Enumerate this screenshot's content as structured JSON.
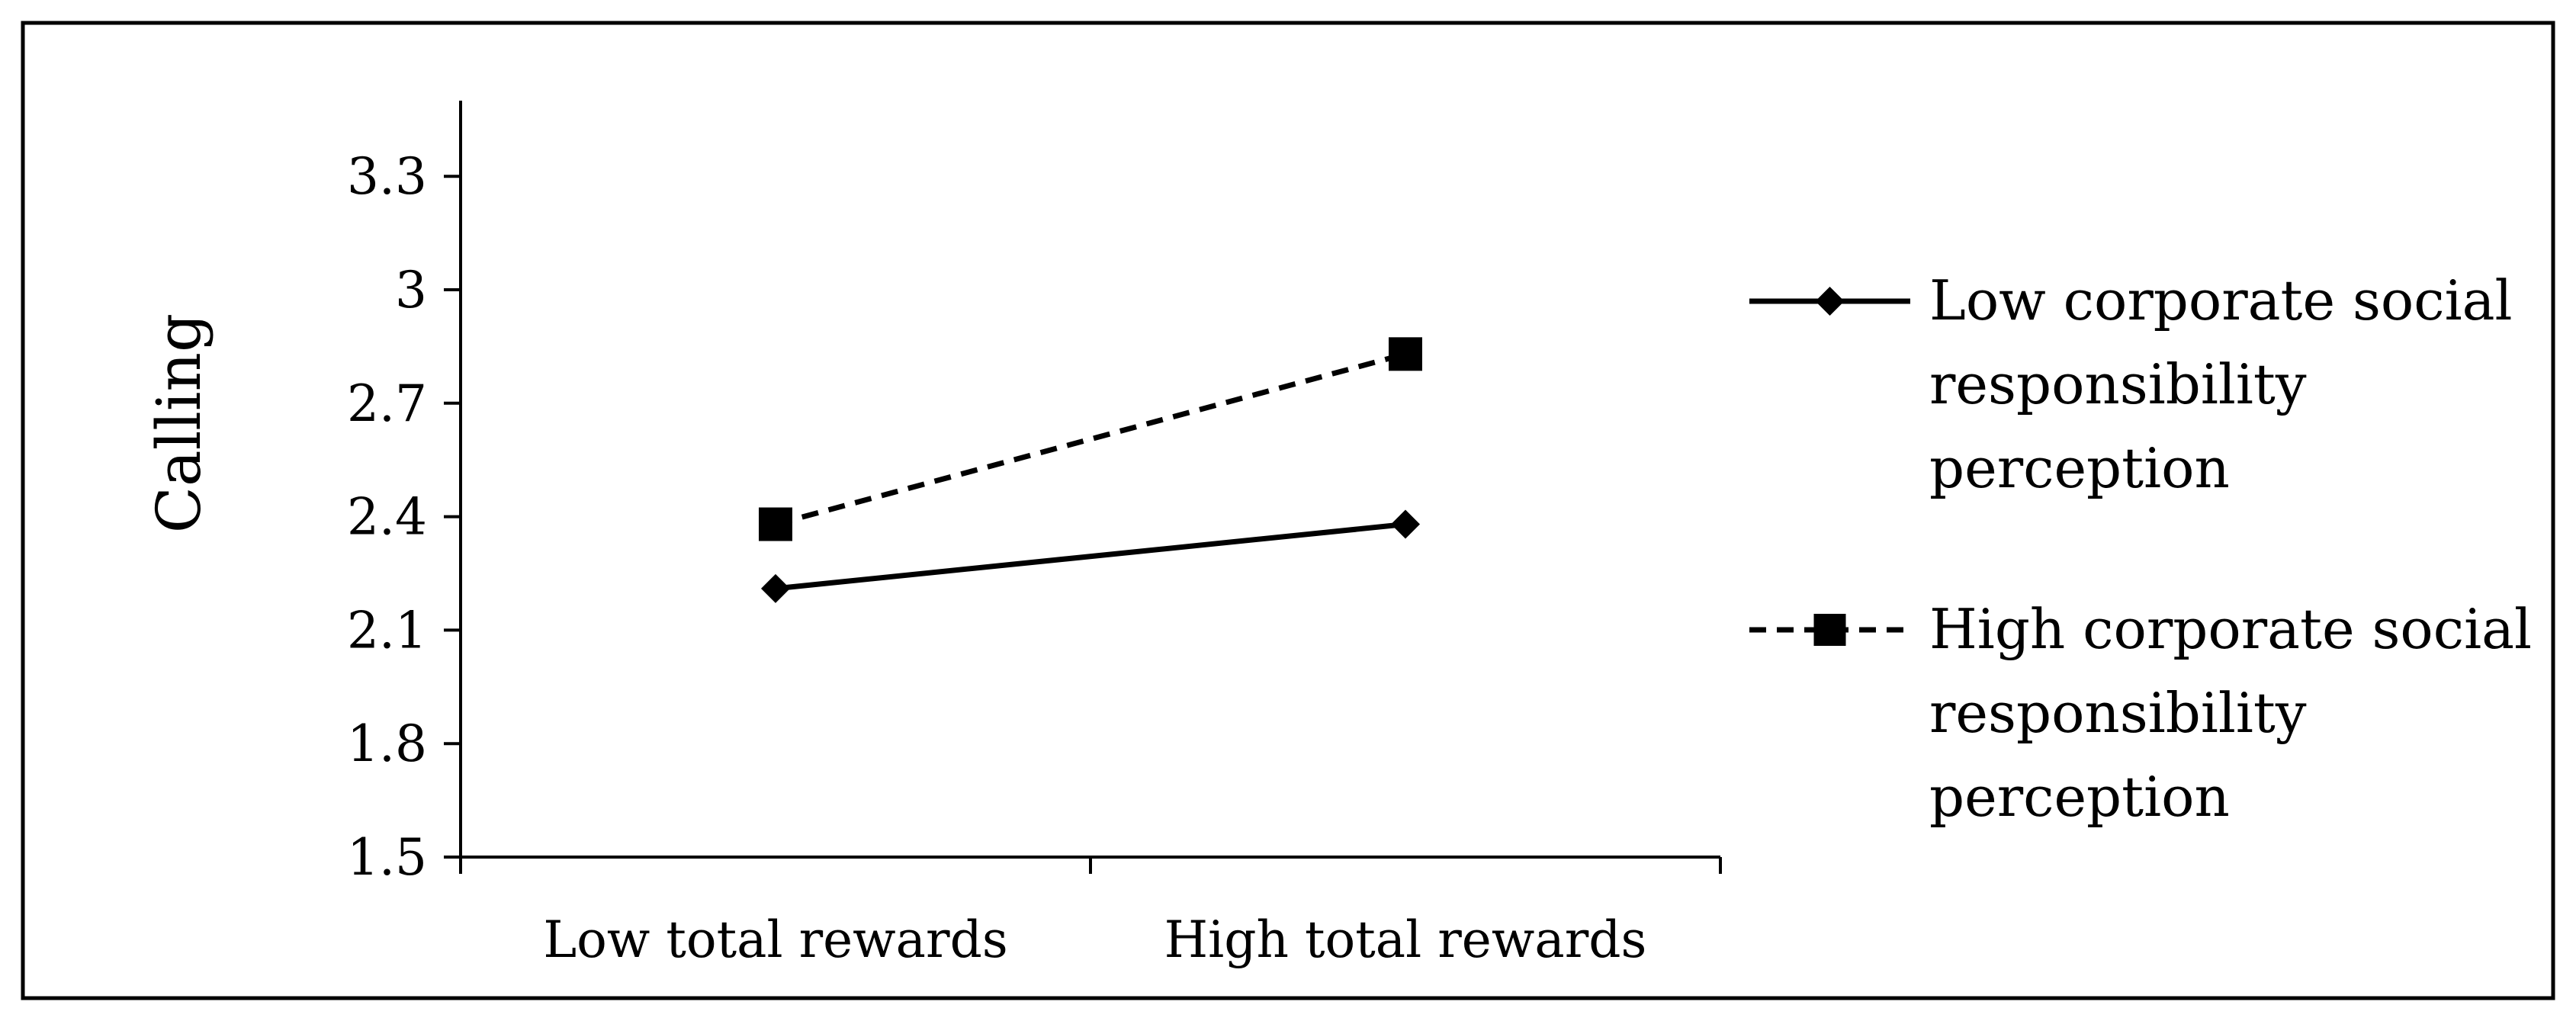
{
  "chart_data": {
    "type": "line",
    "title": "",
    "xlabel": "",
    "ylabel": "Calling",
    "categories": [
      "Low total rewards",
      "High total rewards"
    ],
    "ylim": [
      1.5,
      3.5
    ],
    "yticks": [
      "1.5",
      "1.8",
      "2.1",
      "2.4",
      "2.7",
      "3",
      "3.3"
    ],
    "grid": false,
    "legend_position": "right",
    "series": [
      {
        "name": "Low corporate social responsibility perception",
        "name_lines": [
          "Low corporate social",
          "responsibility",
          "perception"
        ],
        "values": [
          2.21,
          2.38
        ],
        "line_style": "solid",
        "marker": "diamond",
        "color": "#000000"
      },
      {
        "name": "High corporate social responsibility perception",
        "name_lines": [
          "High corporate social",
          "responsibility",
          "perception"
        ],
        "values": [
          2.38,
          2.83
        ],
        "line_style": "dashed",
        "marker": "square",
        "color": "#000000"
      }
    ]
  }
}
